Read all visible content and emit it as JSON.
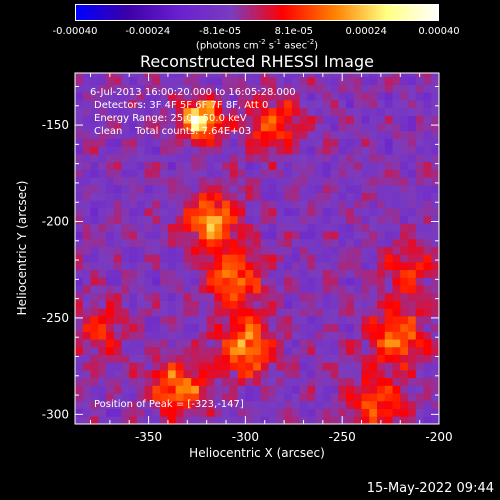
{
  "colorbar": {
    "colors": [
      "#0000ff",
      "#3c00a8",
      "#6a20d0",
      "#7a3cc0",
      "#ff0000",
      "#ff8000",
      "#ffff80",
      "#ffffff"
    ],
    "tick_labels": [
      "-0.00040",
      "-0.00024",
      "-8.1e-05",
      "8.1e-05",
      "0.00024",
      "0.00040"
    ],
    "tick_values": [
      -0.0004,
      -0.00024,
      -8.1e-05,
      8.1e-05,
      0.00024,
      0.0004
    ],
    "range": [
      -0.0004,
      0.0004
    ],
    "unit_prefix": "(photons cm",
    "unit_exp1": "-2",
    "unit_mid": " s",
    "unit_exp2": "-1",
    "unit_mid2": " asec",
    "unit_exp3": "-2",
    "unit_suffix": ")"
  },
  "chart_data": {
    "type": "heatmap",
    "title": "Reconstructed RHESSI Image",
    "xlabel": "Heliocentric X (arcsec)",
    "ylabel": "Heliocentric Y (arcsec)",
    "xlim": [
      -388,
      -200
    ],
    "ylim": [
      -305,
      -123
    ],
    "x_ticks": [
      -350,
      -300,
      -250,
      -200
    ],
    "x_tick_labels": [
      "-350",
      "-300",
      "-250",
      "-200"
    ],
    "y_ticks": [
      -300,
      -250,
      -200,
      -150
    ],
    "y_tick_labels": [
      "-300",
      "-250",
      "-200",
      "-150"
    ],
    "peak": [
      -323,
      -147
    ],
    "bright_sources": [
      {
        "x": -323,
        "y": -147,
        "value": 0.0004
      },
      {
        "x": -318,
        "y": -200,
        "value": 0.00025
      },
      {
        "x": -305,
        "y": -230,
        "value": 0.00022
      },
      {
        "x": -300,
        "y": -265,
        "value": 0.00026
      },
      {
        "x": -335,
        "y": -285,
        "value": 0.00022
      },
      {
        "x": -285,
        "y": -150,
        "value": 0.00018
      },
      {
        "x": -222,
        "y": -260,
        "value": 0.00022
      },
      {
        "x": -232,
        "y": -295,
        "value": 0.00018
      },
      {
        "x": -215,
        "y": -225,
        "value": 0.00014
      },
      {
        "x": -375,
        "y": -255,
        "value": 0.00012
      }
    ],
    "annotations": {
      "time_range": "6-Jul-2013 16:00:20.000 to 16:05:28.000",
      "detectors": "Detectors: 3F 4F 5F 6F 7F 8F, Att 0",
      "energy": "Energy Range: 25.0 - 50.0 keV",
      "method": "Clean    Total counts: 7.64E+03",
      "peak_label": "Position of Peak = [-323,-147]"
    }
  },
  "timestamp": "15-May-2022 09:44"
}
